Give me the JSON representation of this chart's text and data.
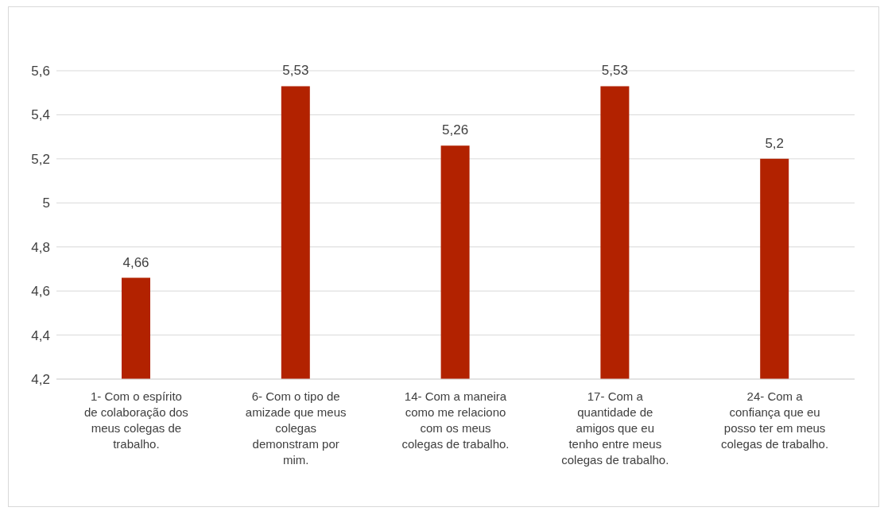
{
  "chart_data": {
    "type": "bar",
    "categories": [
      "1- Com o espírito de colaboração dos meus colegas de trabalho.",
      "6- Com o tipo de amizade que meus colegas demonstram por mim.",
      "14- Com a maneira como me relaciono com os meus colegas de trabalho.",
      "17- Com a quantidade de amigos que eu tenho entre meus colegas de trabalho.",
      "24- Com a confiança que eu posso ter em meus colegas de trabalho."
    ],
    "values": [
      4.66,
      5.53,
      5.26,
      5.53,
      5.2
    ],
    "value_labels": [
      "4,66",
      "5,53",
      "5,26",
      "5,53",
      "5,2"
    ],
    "color": "#b22200",
    "ylim": [
      4.2,
      5.6
    ],
    "yticks": [
      {
        "value": 4.2,
        "label": "4,2"
      },
      {
        "value": 4.4,
        "label": "4,4"
      },
      {
        "value": 4.6,
        "label": "4,6"
      },
      {
        "value": 4.8,
        "label": "4,8"
      },
      {
        "value": 5,
        "label": "5"
      },
      {
        "value": 5.2,
        "label": "5,2"
      },
      {
        "value": 5.4,
        "label": "5,4"
      },
      {
        "value": 5.6,
        "label": "5,6"
      }
    ],
    "grid": "y",
    "legend": false
  }
}
